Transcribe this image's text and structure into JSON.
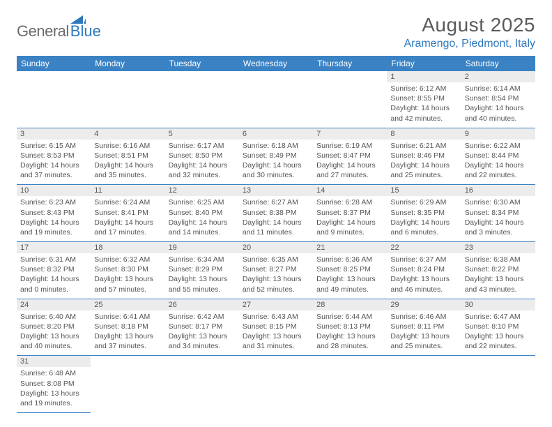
{
  "logo": {
    "text1": "General",
    "text2": "Blue"
  },
  "header": {
    "title": "August 2025",
    "location": "Aramengo, Piedmont, Italy"
  },
  "colors": {
    "accent": "#3a82c4",
    "brand_blue": "#2e78bd",
    "stripe": "#ececec",
    "text": "#555555"
  },
  "weekdays": [
    "Sunday",
    "Monday",
    "Tuesday",
    "Wednesday",
    "Thursday",
    "Friday",
    "Saturday"
  ],
  "weeks": [
    [
      null,
      null,
      null,
      null,
      null,
      {
        "d": "1",
        "sunrise": "Sunrise: 6:12 AM",
        "sunset": "Sunset: 8:55 PM",
        "daylight": "Daylight: 14 hours and 42 minutes."
      },
      {
        "d": "2",
        "sunrise": "Sunrise: 6:14 AM",
        "sunset": "Sunset: 8:54 PM",
        "daylight": "Daylight: 14 hours and 40 minutes."
      }
    ],
    [
      {
        "d": "3",
        "sunrise": "Sunrise: 6:15 AM",
        "sunset": "Sunset: 8:53 PM",
        "daylight": "Daylight: 14 hours and 37 minutes."
      },
      {
        "d": "4",
        "sunrise": "Sunrise: 6:16 AM",
        "sunset": "Sunset: 8:51 PM",
        "daylight": "Daylight: 14 hours and 35 minutes."
      },
      {
        "d": "5",
        "sunrise": "Sunrise: 6:17 AM",
        "sunset": "Sunset: 8:50 PM",
        "daylight": "Daylight: 14 hours and 32 minutes."
      },
      {
        "d": "6",
        "sunrise": "Sunrise: 6:18 AM",
        "sunset": "Sunset: 8:49 PM",
        "daylight": "Daylight: 14 hours and 30 minutes."
      },
      {
        "d": "7",
        "sunrise": "Sunrise: 6:19 AM",
        "sunset": "Sunset: 8:47 PM",
        "daylight": "Daylight: 14 hours and 27 minutes."
      },
      {
        "d": "8",
        "sunrise": "Sunrise: 6:21 AM",
        "sunset": "Sunset: 8:46 PM",
        "daylight": "Daylight: 14 hours and 25 minutes."
      },
      {
        "d": "9",
        "sunrise": "Sunrise: 6:22 AM",
        "sunset": "Sunset: 8:44 PM",
        "daylight": "Daylight: 14 hours and 22 minutes."
      }
    ],
    [
      {
        "d": "10",
        "sunrise": "Sunrise: 6:23 AM",
        "sunset": "Sunset: 8:43 PM",
        "daylight": "Daylight: 14 hours and 19 minutes."
      },
      {
        "d": "11",
        "sunrise": "Sunrise: 6:24 AM",
        "sunset": "Sunset: 8:41 PM",
        "daylight": "Daylight: 14 hours and 17 minutes."
      },
      {
        "d": "12",
        "sunrise": "Sunrise: 6:25 AM",
        "sunset": "Sunset: 8:40 PM",
        "daylight": "Daylight: 14 hours and 14 minutes."
      },
      {
        "d": "13",
        "sunrise": "Sunrise: 6:27 AM",
        "sunset": "Sunset: 8:38 PM",
        "daylight": "Daylight: 14 hours and 11 minutes."
      },
      {
        "d": "14",
        "sunrise": "Sunrise: 6:28 AM",
        "sunset": "Sunset: 8:37 PM",
        "daylight": "Daylight: 14 hours and 9 minutes."
      },
      {
        "d": "15",
        "sunrise": "Sunrise: 6:29 AM",
        "sunset": "Sunset: 8:35 PM",
        "daylight": "Daylight: 14 hours and 6 minutes."
      },
      {
        "d": "16",
        "sunrise": "Sunrise: 6:30 AM",
        "sunset": "Sunset: 8:34 PM",
        "daylight": "Daylight: 14 hours and 3 minutes."
      }
    ],
    [
      {
        "d": "17",
        "sunrise": "Sunrise: 6:31 AM",
        "sunset": "Sunset: 8:32 PM",
        "daylight": "Daylight: 14 hours and 0 minutes."
      },
      {
        "d": "18",
        "sunrise": "Sunrise: 6:32 AM",
        "sunset": "Sunset: 8:30 PM",
        "daylight": "Daylight: 13 hours and 57 minutes."
      },
      {
        "d": "19",
        "sunrise": "Sunrise: 6:34 AM",
        "sunset": "Sunset: 8:29 PM",
        "daylight": "Daylight: 13 hours and 55 minutes."
      },
      {
        "d": "20",
        "sunrise": "Sunrise: 6:35 AM",
        "sunset": "Sunset: 8:27 PM",
        "daylight": "Daylight: 13 hours and 52 minutes."
      },
      {
        "d": "21",
        "sunrise": "Sunrise: 6:36 AM",
        "sunset": "Sunset: 8:25 PM",
        "daylight": "Daylight: 13 hours and 49 minutes."
      },
      {
        "d": "22",
        "sunrise": "Sunrise: 6:37 AM",
        "sunset": "Sunset: 8:24 PM",
        "daylight": "Daylight: 13 hours and 46 minutes."
      },
      {
        "d": "23",
        "sunrise": "Sunrise: 6:38 AM",
        "sunset": "Sunset: 8:22 PM",
        "daylight": "Daylight: 13 hours and 43 minutes."
      }
    ],
    [
      {
        "d": "24",
        "sunrise": "Sunrise: 6:40 AM",
        "sunset": "Sunset: 8:20 PM",
        "daylight": "Daylight: 13 hours and 40 minutes."
      },
      {
        "d": "25",
        "sunrise": "Sunrise: 6:41 AM",
        "sunset": "Sunset: 8:18 PM",
        "daylight": "Daylight: 13 hours and 37 minutes."
      },
      {
        "d": "26",
        "sunrise": "Sunrise: 6:42 AM",
        "sunset": "Sunset: 8:17 PM",
        "daylight": "Daylight: 13 hours and 34 minutes."
      },
      {
        "d": "27",
        "sunrise": "Sunrise: 6:43 AM",
        "sunset": "Sunset: 8:15 PM",
        "daylight": "Daylight: 13 hours and 31 minutes."
      },
      {
        "d": "28",
        "sunrise": "Sunrise: 6:44 AM",
        "sunset": "Sunset: 8:13 PM",
        "daylight": "Daylight: 13 hours and 28 minutes."
      },
      {
        "d": "29",
        "sunrise": "Sunrise: 6:46 AM",
        "sunset": "Sunset: 8:11 PM",
        "daylight": "Daylight: 13 hours and 25 minutes."
      },
      {
        "d": "30",
        "sunrise": "Sunrise: 6:47 AM",
        "sunset": "Sunset: 8:10 PM",
        "daylight": "Daylight: 13 hours and 22 minutes."
      }
    ],
    [
      {
        "d": "31",
        "sunrise": "Sunrise: 6:48 AM",
        "sunset": "Sunset: 8:08 PM",
        "daylight": "Daylight: 13 hours and 19 minutes."
      },
      null,
      null,
      null,
      null,
      null,
      null
    ]
  ]
}
